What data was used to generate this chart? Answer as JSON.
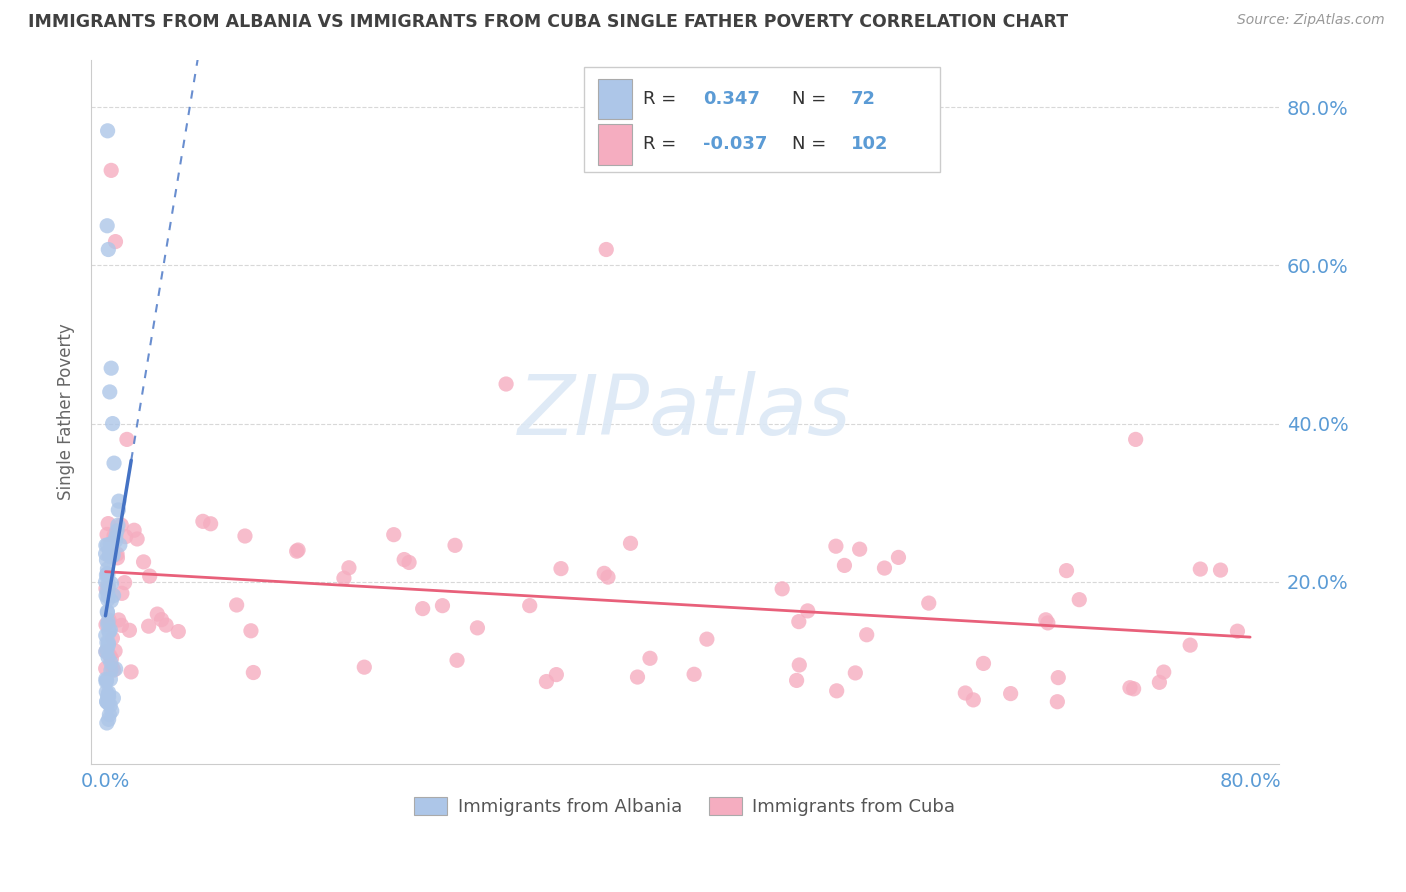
{
  "title": "IMMIGRANTS FROM ALBANIA VS IMMIGRANTS FROM CUBA SINGLE FATHER POVERTY CORRELATION CHART",
  "source": "Source: ZipAtlas.com",
  "ylabel": "Single Father Poverty",
  "r_albania": 0.347,
  "n_albania": 72,
  "r_cuba": -0.037,
  "n_cuba": 102,
  "color_albania": "#adc6e8",
  "color_cuba": "#f5adc0",
  "line_color_albania": "#4472c4",
  "line_color_cuba": "#e8607a",
  "bg_color": "#ffffff",
  "grid_color": "#d8d8d8",
  "title_color": "#404040",
  "axis_label_color": "#5b9bd5",
  "legend_text_color": "#5b9bd5",
  "legend_label_color": "#404040",
  "watermark_color": "#dce8f5",
  "xmin": 0.0,
  "xmax": 0.8,
  "ymin": 0.0,
  "ymax": 0.82,
  "yticks": [
    0.2,
    0.4,
    0.6,
    0.8
  ],
  "xticks": [
    0.0,
    0.8
  ]
}
